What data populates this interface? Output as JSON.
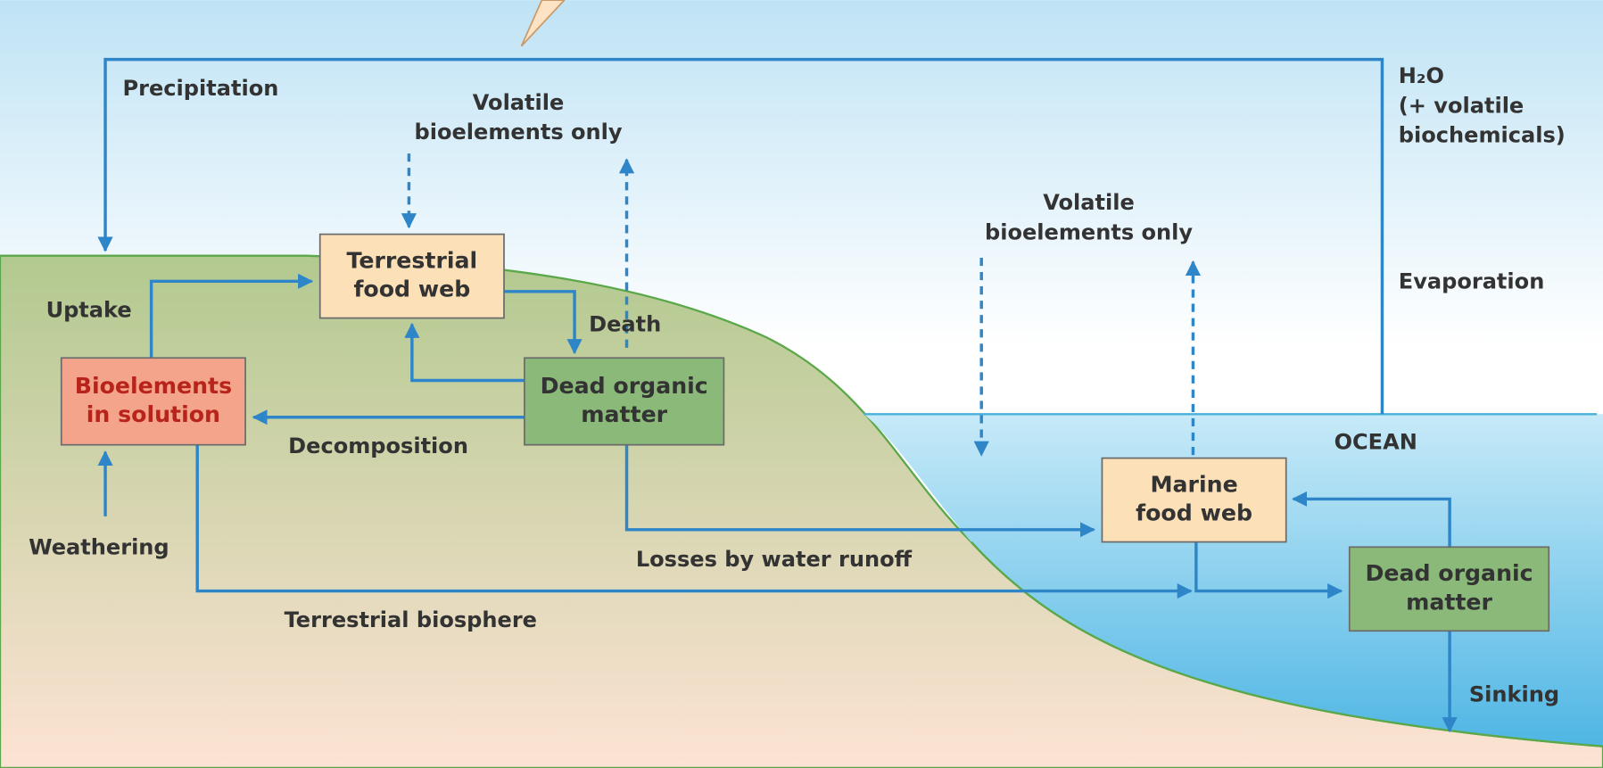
{
  "labels": [
    {
      "lines": [
        "Precipitation"
      ]
    },
    {
      "lines": [
        "Volatile",
        "bioelements only"
      ]
    },
    {
      "lines": [
        "H₂O",
        "(+ volatile",
        "biochemicals)"
      ]
    },
    {
      "lines": [
        "Volatile",
        "bioelements only"
      ]
    },
    {
      "lines": [
        "Evaporation"
      ]
    },
    {
      "lines": [
        "Uptake"
      ]
    },
    {
      "lines": [
        "Death"
      ]
    },
    {
      "lines": [
        "Decomposition"
      ]
    },
    {
      "lines": [
        "OCEAN"
      ]
    },
    {
      "lines": [
        "Weathering"
      ]
    },
    {
      "lines": [
        "Losses by water runoff"
      ]
    },
    {
      "lines": [
        "Terrestrial biosphere"
      ]
    },
    {
      "lines": [
        "Sinking"
      ]
    }
  ],
  "boxes": [
    {
      "lines": [
        "Terrestrial",
        "food web"
      ]
    },
    {
      "lines": [
        "Bioelements",
        "in solution"
      ]
    },
    {
      "lines": [
        "Dead organic",
        "matter"
      ]
    },
    {
      "lines": [
        "Marine",
        "food web"
      ]
    },
    {
      "lines": [
        "Dead organic",
        "matter"
      ]
    }
  ]
}
